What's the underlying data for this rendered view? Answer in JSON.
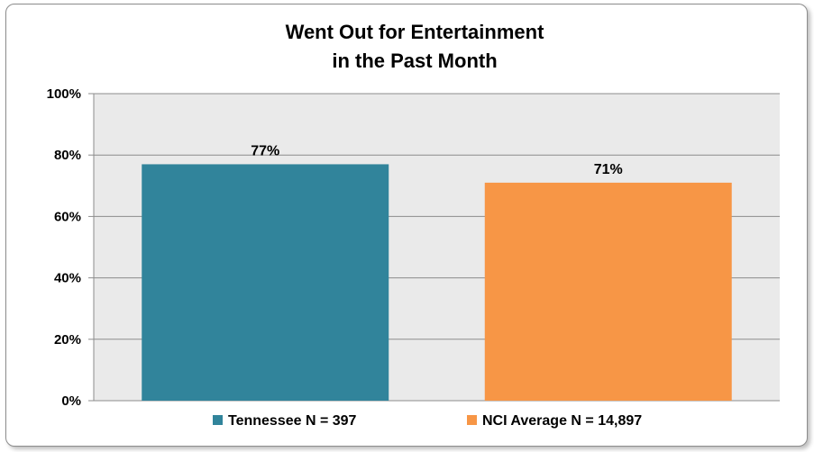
{
  "chart_data": {
    "type": "bar",
    "title": [
      "Went Out for Entertainment",
      "in the Past Month"
    ],
    "categories": [
      ""
    ],
    "series": [
      {
        "name": "Tennessee N = 397",
        "values": [
          77
        ],
        "label": "77%",
        "color": "#31849b"
      },
      {
        "name": "NCI Average N = 14,897",
        "values": [
          71
        ],
        "label": "71%",
        "color": "#f79646"
      }
    ],
    "ylim": [
      0,
      100
    ],
    "yticks": [
      "0%",
      "20%",
      "40%",
      "60%",
      "80%",
      "100%"
    ],
    "grid": true,
    "legend": "bottom",
    "plot_background": "#eaeaea"
  }
}
